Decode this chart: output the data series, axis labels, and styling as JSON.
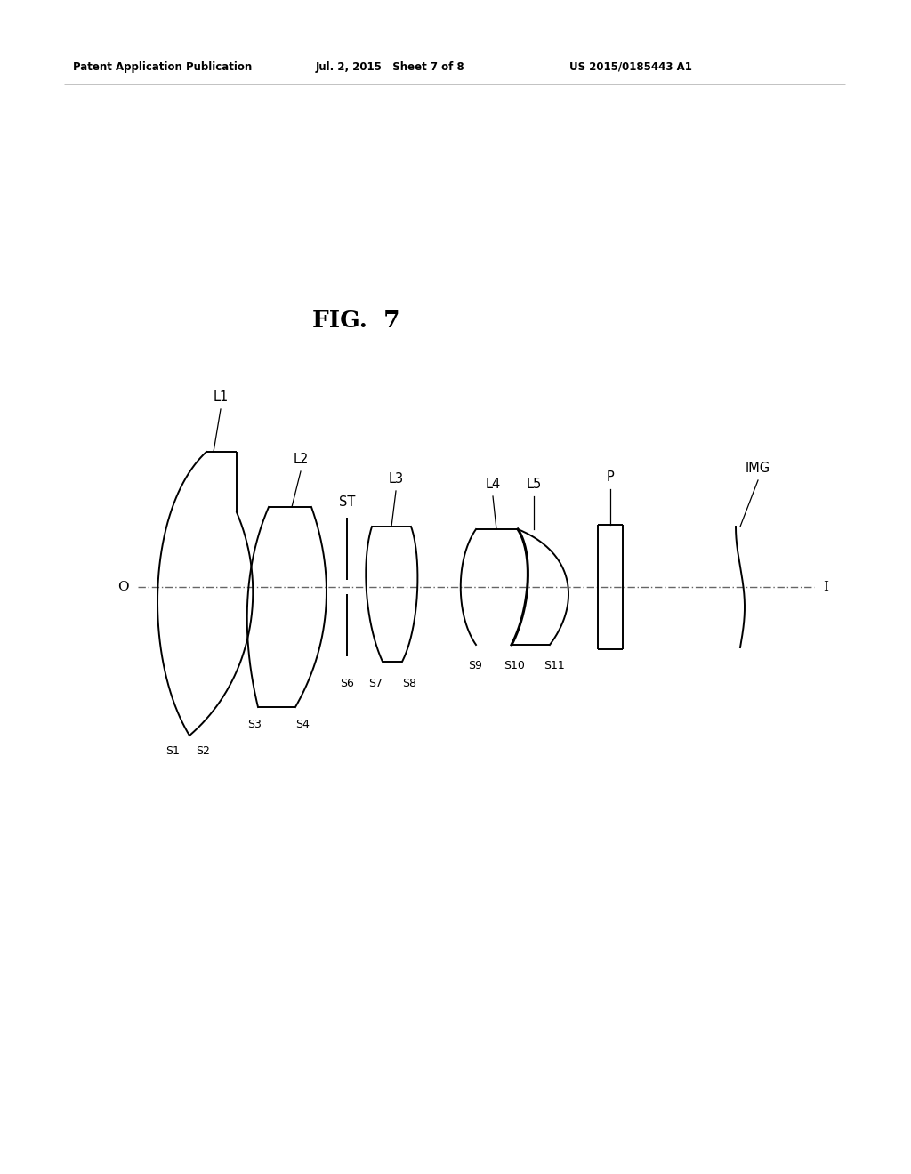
{
  "title": "FIG.  7",
  "header_left": "Patent Application Publication",
  "header_mid": "Jul. 2, 2015   Sheet 7 of 8",
  "header_right": "US 2015/0185443 A1",
  "bg_color": "#ffffff",
  "line_color": "#000000",
  "lw": 1.4,
  "fig_title_fontsize": 19,
  "label_fontsize": 10.5,
  "surf_fontsize": 9.0,
  "header_fontsize": 8.5
}
